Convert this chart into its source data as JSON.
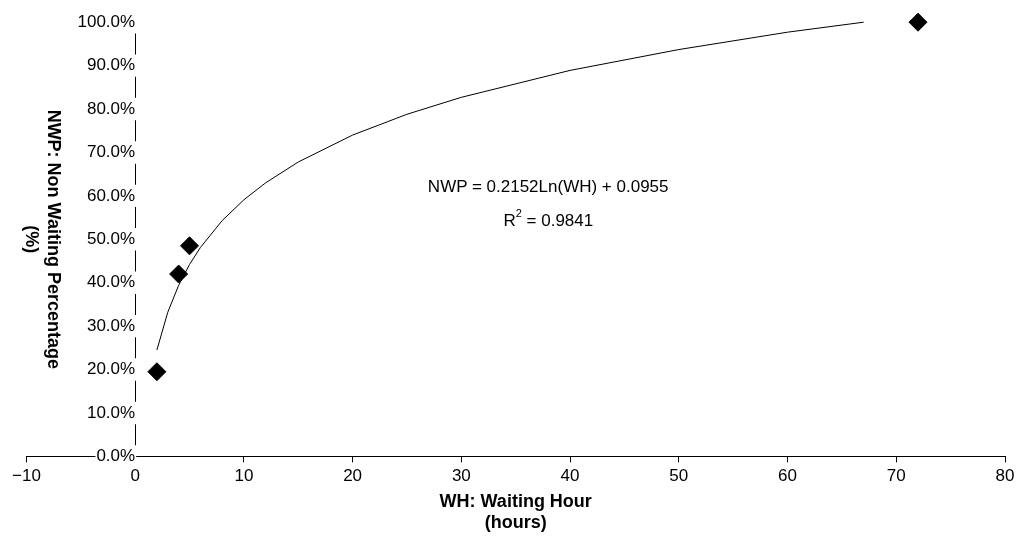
{
  "chart_data": {
    "type": "scatter",
    "xlabel": "WH: Waiting Hour\n(hours)",
    "ylabel": "NWP: Non Waiting Percentage\n(%)",
    "series": [
      {
        "type": "scatter",
        "color": "#000000",
        "marker": "diamond",
        "x": [
          2,
          4,
          5,
          72
        ],
        "values": [
          19.5,
          42,
          48.5,
          100
        ]
      },
      {
        "type": "line",
        "color": "#000000",
        "marker": "none",
        "line_style": "solid",
        "x": [
          2,
          3,
          4,
          5,
          6,
          8,
          10,
          12,
          15,
          20,
          25,
          30,
          40,
          50,
          60,
          67
        ],
        "values": [
          24.5,
          33.2,
          39.4,
          44.2,
          48.1,
          54.3,
          59.1,
          63.0,
          67.8,
          74.0,
          78.8,
          82.7,
          88.9,
          93.7,
          97.7,
          100.0
        ]
      }
    ],
    "xlim": [
      -10,
      80
    ],
    "xticks": [
      {
        "value": -10,
        "label": "−10"
      },
      0,
      10,
      20,
      30,
      40,
      50,
      60,
      70,
      80
    ],
    "ylim": [
      0,
      100
    ],
    "yticks": [
      {
        "value": 0,
        "label": "0.0%"
      },
      {
        "value": 10,
        "label": "10.0%"
      },
      {
        "value": 20,
        "label": "20.0%"
      },
      {
        "value": 30,
        "label": "30.0%"
      },
      {
        "value": 40,
        "label": "40.0%"
      },
      {
        "value": 50,
        "label": "50.0%"
      },
      {
        "value": 60,
        "label": "60.0%"
      },
      {
        "value": 70,
        "label": "70.0%"
      },
      {
        "value": 80,
        "label": "80.0%"
      },
      {
        "value": 90,
        "label": "90.0%"
      },
      {
        "value": 100,
        "label": "100.0%"
      }
    ],
    "annotations": [
      "NWP = 0.2152Ln(WH) + 0.0955",
      "R$^{2}$ = 0.9841"
    ],
    "grid": false,
    "legend": false
  }
}
